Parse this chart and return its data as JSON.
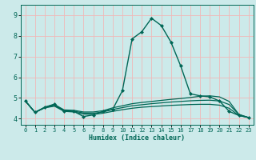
{
  "title": "",
  "xlabel": "Humidex (Indice chaleur)",
  "bg_color": "#cceaea",
  "grid_color": "#f0b8b8",
  "line_color": "#006655",
  "xlim": [
    -0.5,
    23.5
  ],
  "ylim": [
    3.7,
    9.5
  ],
  "yticks": [
    4,
    5,
    6,
    7,
    8,
    9
  ],
  "xticks": [
    0,
    1,
    2,
    3,
    4,
    5,
    6,
    7,
    8,
    9,
    10,
    11,
    12,
    13,
    14,
    15,
    16,
    17,
    18,
    19,
    20,
    21,
    22,
    23
  ],
  "series": [
    {
      "x": [
        0,
        1,
        2,
        3,
        4,
        5,
        6,
        7,
        8,
        9,
        10,
        11,
        12,
        13,
        14,
        15,
        16,
        17,
        18,
        19,
        20,
        21,
        22,
        23
      ],
      "y": [
        4.85,
        4.3,
        4.55,
        4.7,
        4.35,
        4.35,
        4.1,
        4.18,
        4.35,
        4.45,
        5.35,
        7.85,
        8.2,
        8.85,
        8.5,
        7.7,
        6.55,
        5.2,
        5.1,
        5.05,
        4.85,
        4.35,
        4.15,
        4.05
      ],
      "marker": "D",
      "markersize": 2.0,
      "linewidth": 1.0
    },
    {
      "x": [
        0,
        1,
        2,
        3,
        4,
        5,
        6,
        7,
        8,
        9,
        10,
        11,
        12,
        13,
        14,
        15,
        16,
        17,
        18,
        19,
        20,
        21,
        22,
        23
      ],
      "y": [
        4.85,
        4.3,
        4.55,
        4.68,
        4.42,
        4.4,
        4.32,
        4.32,
        4.38,
        4.52,
        4.62,
        4.72,
        4.78,
        4.83,
        4.88,
        4.93,
        4.97,
        5.02,
        5.08,
        5.1,
        5.05,
        4.83,
        4.2,
        4.05
      ],
      "marker": null,
      "linewidth": 0.9
    },
    {
      "x": [
        0,
        1,
        2,
        3,
        4,
        5,
        6,
        7,
        8,
        9,
        10,
        11,
        12,
        13,
        14,
        15,
        16,
        17,
        18,
        19,
        20,
        21,
        22,
        23
      ],
      "y": [
        4.85,
        4.3,
        4.53,
        4.63,
        4.38,
        4.36,
        4.27,
        4.26,
        4.32,
        4.44,
        4.53,
        4.62,
        4.67,
        4.72,
        4.76,
        4.8,
        4.83,
        4.86,
        4.88,
        4.89,
        4.85,
        4.68,
        4.2,
        4.05
      ],
      "marker": null,
      "linewidth": 0.9
    },
    {
      "x": [
        0,
        1,
        2,
        3,
        4,
        5,
        6,
        7,
        8,
        9,
        10,
        11,
        12,
        13,
        14,
        15,
        16,
        17,
        18,
        19,
        20,
        21,
        22,
        23
      ],
      "y": [
        4.85,
        4.3,
        4.52,
        4.6,
        4.35,
        4.32,
        4.22,
        4.2,
        4.26,
        4.35,
        4.43,
        4.5,
        4.55,
        4.58,
        4.61,
        4.64,
        4.66,
        4.68,
        4.69,
        4.69,
        4.65,
        4.5,
        4.15,
        4.05
      ],
      "marker": null,
      "linewidth": 0.9
    }
  ]
}
